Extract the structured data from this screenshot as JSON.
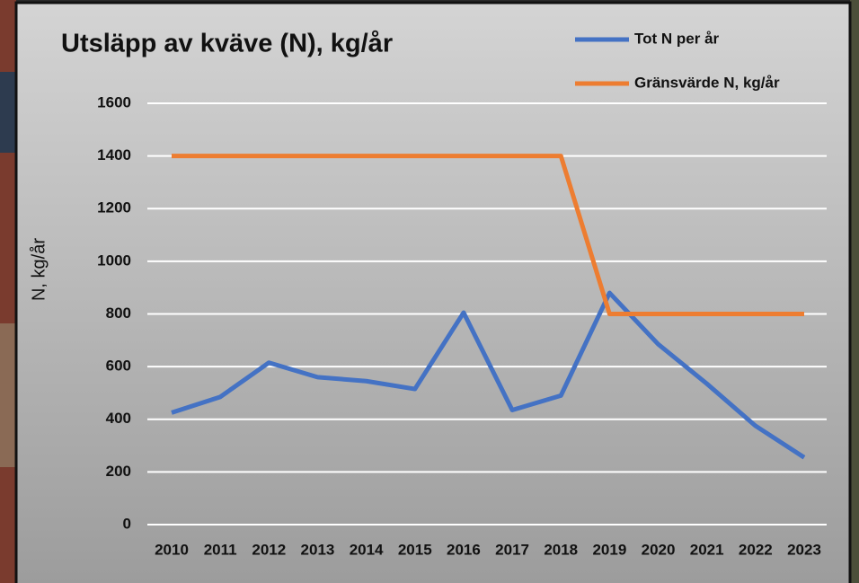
{
  "chart_data": {
    "type": "line",
    "title": "Utsläpp av kväve (N), kg/år",
    "y_label": "N, kg/år",
    "categories": [
      "2010",
      "2011",
      "2012",
      "2013",
      "2014",
      "2015",
      "2016",
      "2017",
      "2018",
      "2019",
      "2020",
      "2021",
      "2022",
      "2023"
    ],
    "series": [
      {
        "name": "Tot N per år",
        "color": "#4472c4",
        "values": [
          425,
          485,
          615,
          560,
          545,
          515,
          805,
          435,
          490,
          880,
          685,
          535,
          375,
          255
        ]
      },
      {
        "name": "Gränsvärde N, kg/år",
        "color": "#ed7d31",
        "values": [
          1400,
          1400,
          1400,
          1400,
          1400,
          1400,
          1400,
          1400,
          1400,
          800,
          800,
          800,
          800,
          800
        ]
      }
    ],
    "ylim": [
      0,
      1600
    ],
    "yticks": [
      0,
      200,
      400,
      600,
      800,
      1000,
      1200,
      1400,
      1600
    ],
    "grid": true
  }
}
